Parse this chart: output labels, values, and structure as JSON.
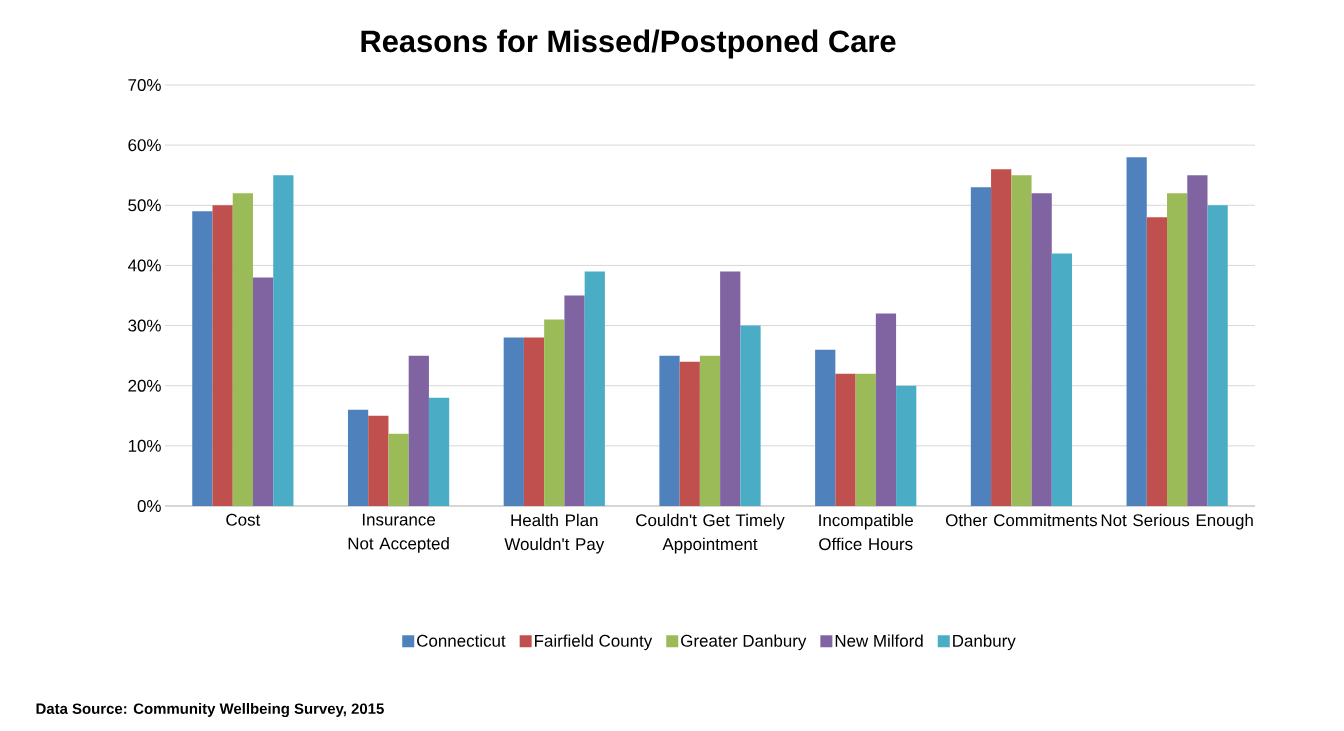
{
  "chart_data": {
    "type": "bar",
    "title": "Reasons for Missed/Postponed Care",
    "categories": [
      "Cost",
      "Insurance Not Accepted",
      "Health Plan Wouldn't Pay",
      "Couldn't Get Timely Appointment",
      "Incompatible Office Hours",
      "Other Commitments",
      "Not Serious Enough"
    ],
    "series": [
      {
        "name": "Connecticut",
        "color": "#4f81bd",
        "values": [
          49,
          16,
          28,
          25,
          26,
          53,
          58
        ]
      },
      {
        "name": "Fairfield County",
        "color": "#c0504d",
        "values": [
          50,
          15,
          28,
          24,
          22,
          56,
          48
        ]
      },
      {
        "name": "Greater Danbury",
        "color": "#9bbb59",
        "values": [
          52,
          12,
          31,
          25,
          22,
          55,
          52
        ]
      },
      {
        "name": "New Milford",
        "color": "#8064a2",
        "values": [
          38,
          25,
          35,
          39,
          32,
          52,
          55
        ]
      },
      {
        "name": "Danbury",
        "color": "#4bacc6",
        "values": [
          55,
          18,
          39,
          30,
          20,
          42,
          50
        ]
      }
    ],
    "ylim": [
      0,
      70
    ],
    "yticks": [
      {
        "value": 0,
        "label": "0%"
      },
      {
        "value": 10,
        "label": "10%"
      },
      {
        "value": 20,
        "label": "20%"
      },
      {
        "value": 30,
        "label": "30%"
      },
      {
        "value": 40,
        "label": "40%"
      },
      {
        "value": 50,
        "label": "50%"
      },
      {
        "value": 60,
        "label": "60%"
      },
      {
        "value": 70,
        "label": "70%"
      }
    ],
    "grid": "y",
    "legend": "bottom",
    "annotations": [
      "Data Source: Community  Wellbeing Survey, 2015"
    ]
  }
}
